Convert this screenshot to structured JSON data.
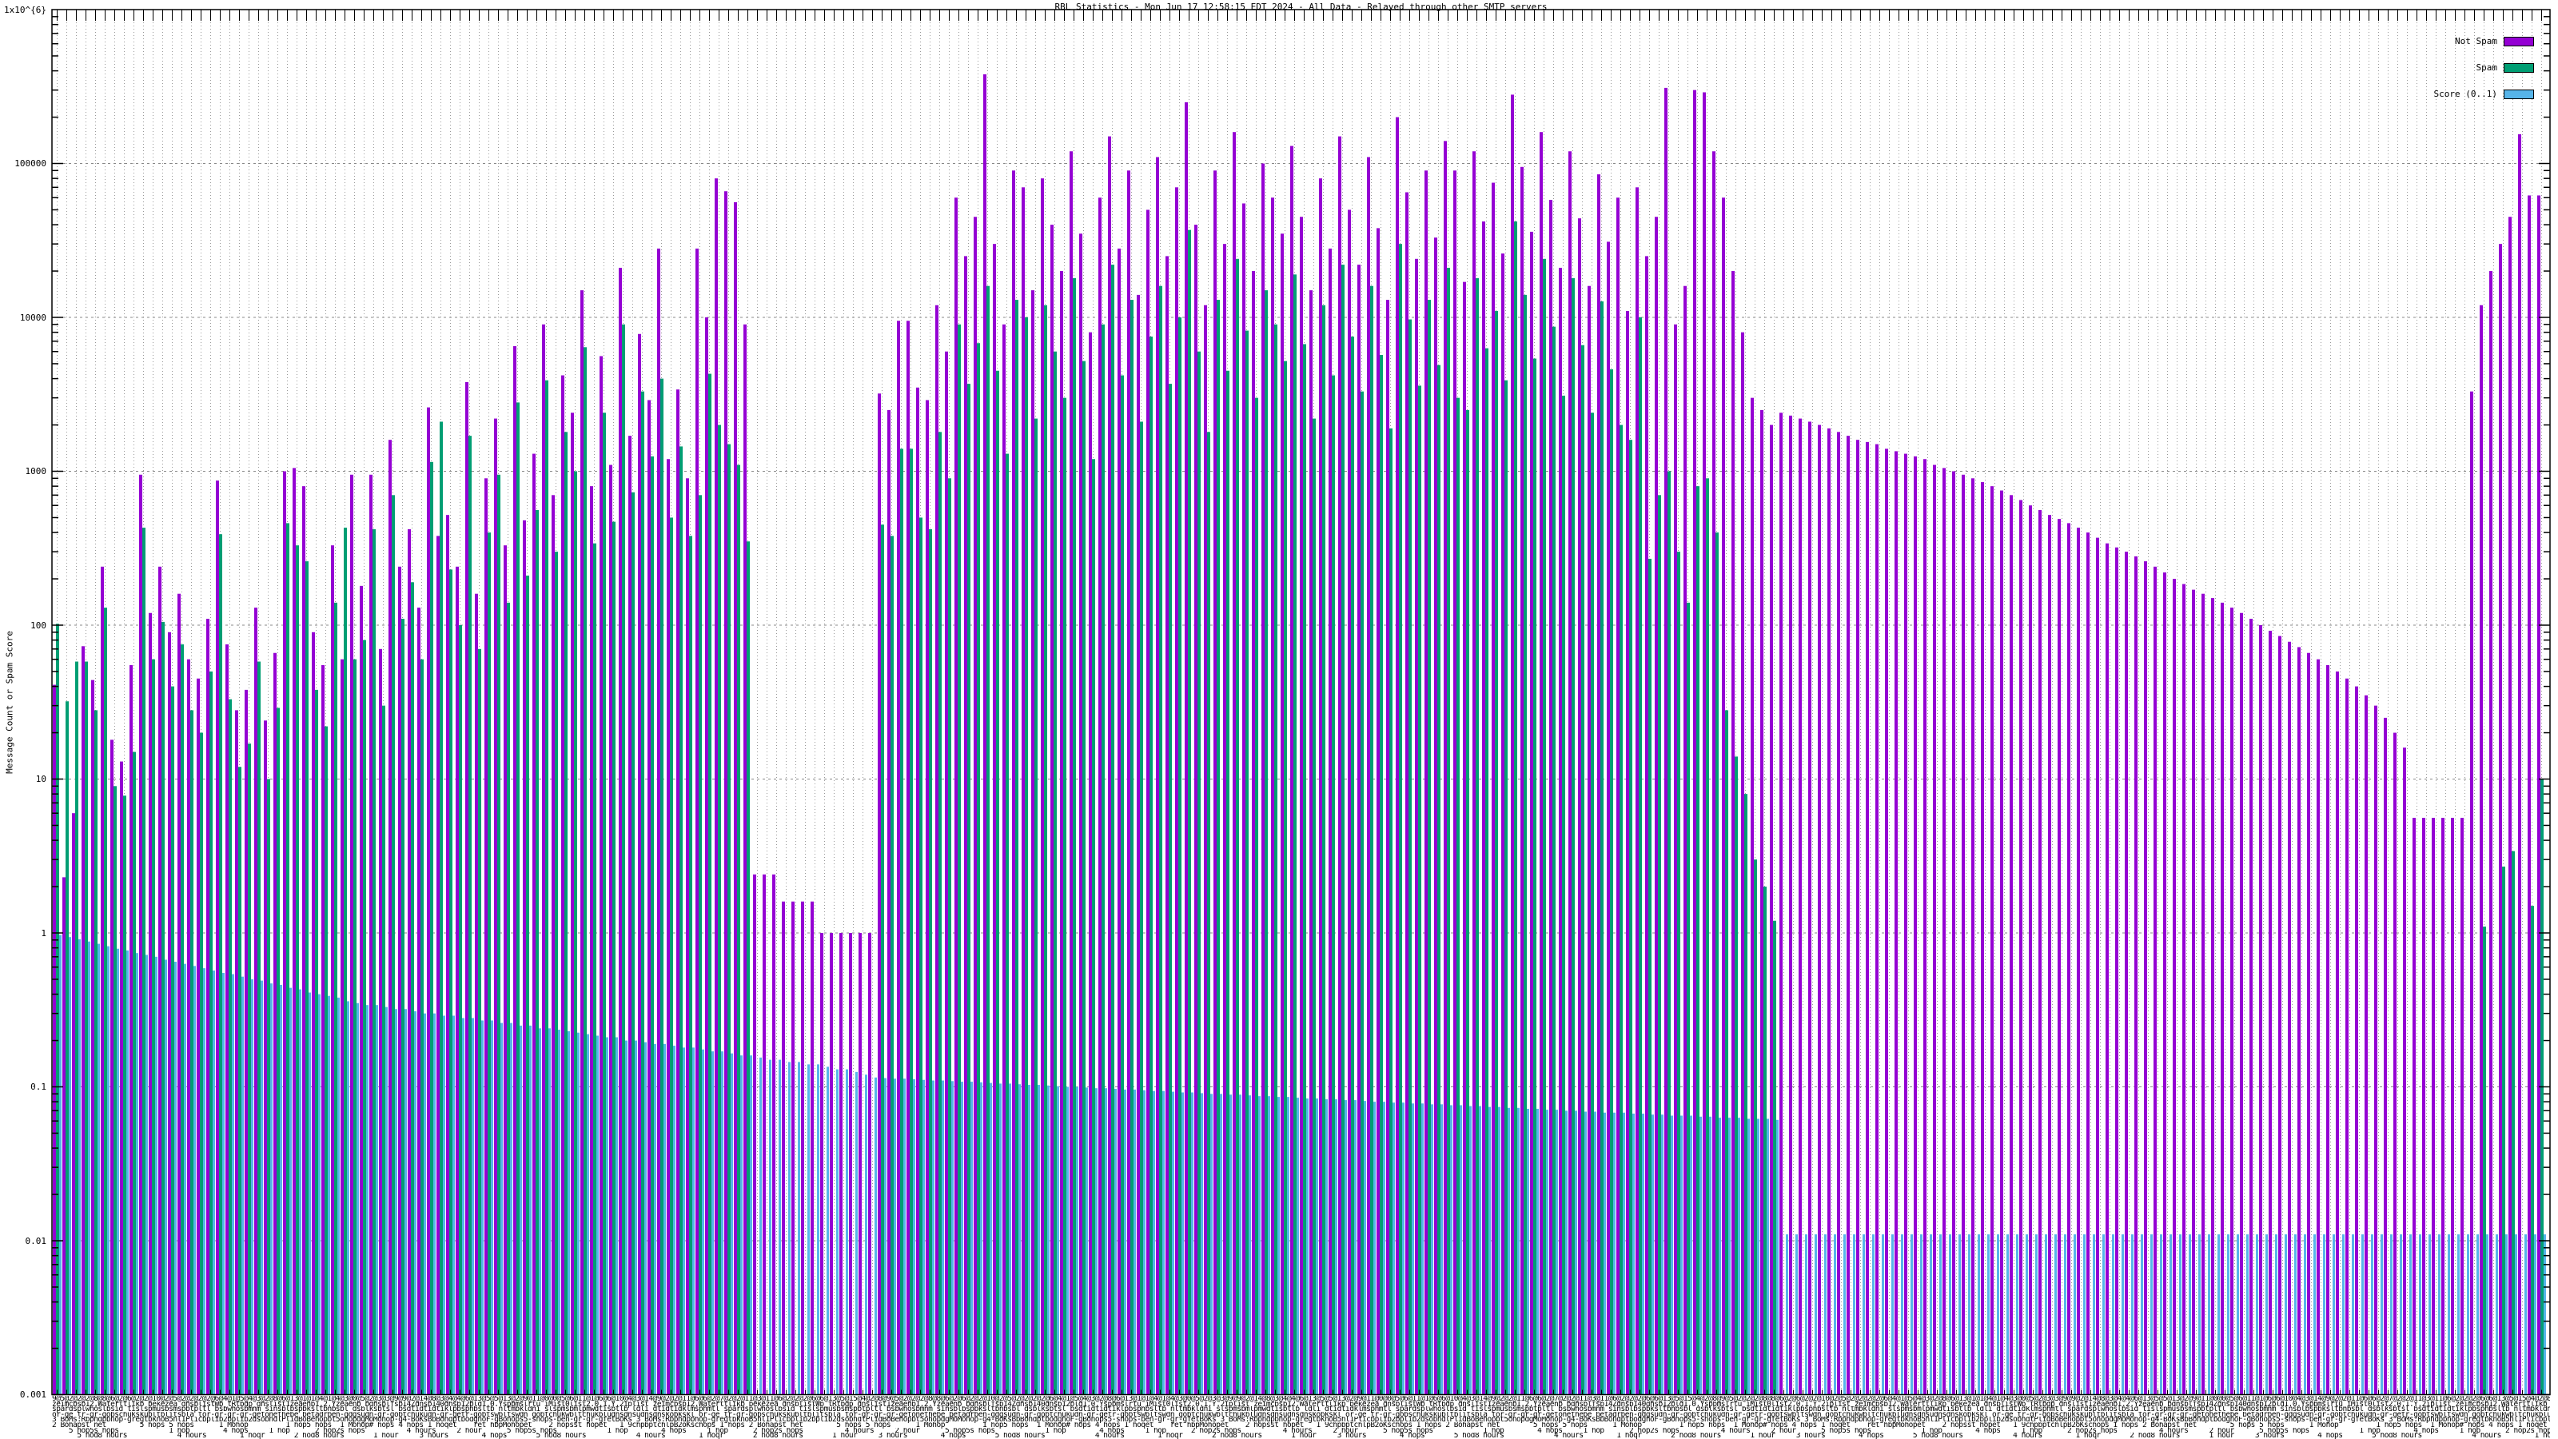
{
  "title": "RBL Statistics - Mon Jun 17 12:58:15 EDT 2024 - All Data - Relayed through other SMTP servers",
  "y_axis": {
    "title": "Message Count or Spam Score",
    "scale": "log",
    "ticks": [
      {
        "v": 1000000,
        "label": "1x10^{6}"
      },
      {
        "v": 100000,
        "label": "100000"
      },
      {
        "v": 10000,
        "label": "10000"
      },
      {
        "v": 1000,
        "label": "1000"
      },
      {
        "v": 100,
        "label": "100"
      },
      {
        "v": 10,
        "label": "10"
      },
      {
        "v": 1,
        "label": "1"
      },
      {
        "v": 0.1,
        "label": "0.1"
      },
      {
        "v": 0.01,
        "label": "0.01"
      },
      {
        "v": 0.001,
        "label": "0.001"
      }
    ]
  },
  "legend": {
    "items": [
      {
        "label": "Not Spam",
        "color": "#9400D3"
      },
      {
        "label": "Spam",
        "color": "#009E73"
      },
      {
        "label": "Score (0..1)",
        "color": "#56B4E9"
      }
    ]
  },
  "colors": {
    "not_spam": "#9400D3",
    "spam": "#009E73",
    "score": "#56B4E9",
    "grid": "#999999",
    "border": "#000000"
  },
  "x_axis": {
    "label_rows": [
      {
        "text": "9@5@2@2@2@8@8@6@2@6@2@2@10@2@5@2@2@2@2@6@4@1@5@4@3@2@8@6@13@1@1@4@1@4@3@0@5@2@3@3@9@9@2@14@8@3@4@4@6@13@5@5@13@2@9@11@0@0@5@6@11@1@6@6@10@4@3@14@9@2@2@11@6@6@2@7@2@2@11@3@11@6@2@2@2@6@6@13@5@15@4@2@8@"
      },
      {
        "text": "zeimcbsb12.Waterttlikb bekezea dnsblistWb tRtbdp dnslist1zeaenb1.2.Yzeaenb bdnsblfsb14Zdnsb140dhsb12bld1.0.Yspbmslrtu iMist0list2.0.1.Y.2iplist "
      },
      {
        "text": "spardsplwhoslbsid tislspmusbsmspbtpltl bsbwhosbmnm sinsblbspbksltbnbsbl dsblksbtsl bsdtidtidtiklpbsphbsltb nltmbkldni slspmsbmlpmwdtisbtlb ldli dtidtidklmsphmtl "
      },
      {
        "text": "or-ge tr-gr-gobschukskubltblitsbla tor-gr-gr-gr-getonethebe betadrben-gdgsudn-gr-gobtchukudn-gr-getr-gobtswbltswdn gobtchukwbltchukbludnsdnsudnsdnskobkskl "
      },
      {
        "text": "3 BoMs:Rbphdpbhop-gregtbknoB5hl1Plicbplib2bplib2dsobhdlPlidBoBehopbt5ohopdgMoMohop-g4-BoKsBbBohdptbodghoF-gBohops5-shops-ben-gr-gr-gfetBoKs "
      },
      {
        "text": "2 Bohapst net        5 hops 5 hops      1 Mohop         1 hop5 hops  1 Mohop# hops 4 hops 1 hoqet    ret hbpMohopet    2 hopsst hopet   1 9chpbptchlpB2oKschops 1 hops "
      },
      {
        "text": "    5 hop5s hops            1 hop        4 hops     1 hop      2 hop2s hops          4 hours     2 hour  "
      },
      {
        "text": "      5 hod8 hours            4 hours        1 hoqr       2 hod8 hours       1 hour     3 hours        4 hops "
      }
    ]
  },
  "chart_data": {
    "type": "bar",
    "title": "RBL Statistics - Mon Jun 17 12:58:15 EDT 2024 - All Data - Relayed through other SMTP servers",
    "xlabel": "",
    "ylabel": "Message Count or Spam Score",
    "y_scale": "log",
    "ylim": [
      0.001,
      1000000
    ],
    "grid": true,
    "legend_position": "top-right",
    "series_names": [
      "Not Spam",
      "Spam",
      "Score (0..1)"
    ],
    "bars_note": "each entry = [not_spam_count, spam_count, score_0_to_1]; spam 0 = no green bar drawn",
    "bars": [
      [
        41,
        102,
        0.97
      ],
      [
        2.3,
        32,
        0.94
      ],
      [
        6,
        58,
        0.91
      ],
      [
        73,
        58,
        0.88
      ],
      [
        44,
        28,
        0.85
      ],
      [
        240,
        130,
        0.82
      ],
      [
        18,
        9,
        0.79
      ],
      [
        13,
        7.8,
        0.77
      ],
      [
        55,
        15,
        0.74
      ],
      [
        950,
        430,
        0.72
      ],
      [
        120,
        60,
        0.7
      ],
      [
        240,
        105,
        0.67
      ],
      [
        90,
        40,
        0.65
      ],
      [
        160,
        75,
        0.63
      ],
      [
        60,
        28,
        0.61
      ],
      [
        45,
        20,
        0.59
      ],
      [
        110,
        50,
        0.57
      ],
      [
        870,
        390,
        0.55
      ],
      [
        75,
        33,
        0.54
      ],
      [
        28,
        12,
        0.52
      ],
      [
        38,
        17,
        0.5
      ],
      [
        130,
        58,
        0.49
      ],
      [
        24,
        10,
        0.47
      ],
      [
        66,
        29,
        0.46
      ],
      [
        1000,
        460,
        0.44
      ],
      [
        1050,
        330,
        0.43
      ],
      [
        800,
        260,
        0.41
      ],
      [
        90,
        38,
        0.4
      ],
      [
        55,
        22,
        0.39
      ],
      [
        330,
        140,
        0.38
      ],
      [
        60,
        430,
        0.36
      ],
      [
        950,
        60,
        0.35
      ],
      [
        180,
        80,
        0.34
      ],
      [
        950,
        420,
        0.34
      ],
      [
        70,
        30,
        0.33
      ],
      [
        1600,
        700,
        0.32
      ],
      [
        240,
        110,
        0.32
      ],
      [
        420,
        190,
        0.31
      ],
      [
        130,
        60,
        0.3
      ],
      [
        2600,
        1150,
        0.3
      ],
      [
        380,
        2100,
        0.29
      ],
      [
        520,
        230,
        0.29
      ],
      [
        240,
        100,
        0.28
      ],
      [
        3800,
        1700,
        0.28
      ],
      [
        160,
        70,
        0.27
      ],
      [
        900,
        400,
        0.27
      ],
      [
        2200,
        950,
        0.26
      ],
      [
        330,
        140,
        0.26
      ],
      [
        6500,
        2800,
        0.25
      ],
      [
        480,
        210,
        0.25
      ],
      [
        1300,
        560,
        0.24
      ],
      [
        9000,
        3900,
        0.24
      ],
      [
        700,
        300,
        0.235
      ],
      [
        4200,
        1800,
        0.23
      ],
      [
        2400,
        1000,
        0.225
      ],
      [
        15000,
        6400,
        0.22
      ],
      [
        800,
        340,
        0.215
      ],
      [
        5600,
        2400,
        0.21
      ],
      [
        1100,
        470,
        0.21
      ],
      [
        21000,
        9000,
        0.2
      ],
      [
        1700,
        730,
        0.2
      ],
      [
        7800,
        3300,
        0.195
      ],
      [
        2900,
        1250,
        0.19
      ],
      [
        28000,
        4000,
        0.19
      ],
      [
        1200,
        500,
        0.185
      ],
      [
        3400,
        1450,
        0.18
      ],
      [
        900,
        380,
        0.18
      ],
      [
        28000,
        700,
        0.175
      ],
      [
        10000,
        4300,
        0.17
      ],
      [
        80000,
        2000,
        0.17
      ],
      [
        66000,
        1500,
        0.165
      ],
      [
        56000,
        1100,
        0.16
      ],
      [
        9000,
        350,
        0.16
      ],
      [
        2.4,
        0,
        0.155
      ],
      [
        2.4,
        0,
        0.15
      ],
      [
        2.4,
        0,
        0.15
      ],
      [
        1.6,
        0,
        0.145
      ],
      [
        1.6,
        0,
        0.145
      ],
      [
        1.6,
        0,
        0.14
      ],
      [
        1.6,
        0,
        0.14
      ],
      [
        1,
        0,
        0.135
      ],
      [
        1,
        0,
        0.13
      ],
      [
        1,
        0,
        0.13
      ],
      [
        1,
        0,
        0.125
      ],
      [
        1,
        0,
        0.12
      ],
      [
        1,
        0,
        0.115
      ],
      [
        3200,
        450,
        0.114
      ],
      [
        2500,
        380,
        0.113
      ],
      [
        9500,
        1400,
        0.113
      ],
      [
        9500,
        1400,
        0.112
      ],
      [
        3500,
        500,
        0.111
      ],
      [
        2900,
        420,
        0.11
      ],
      [
        12000,
        1800,
        0.11
      ],
      [
        6000,
        900,
        0.109
      ],
      [
        60000,
        9000,
        0.108
      ],
      [
        25000,
        3700,
        0.108
      ],
      [
        45000,
        6800,
        0.107
      ],
      [
        380000,
        16000,
        0.106
      ],
      [
        30000,
        4500,
        0.105
      ],
      [
        9000,
        1300,
        0.105
      ],
      [
        90000,
        13000,
        0.104
      ],
      [
        70000,
        10000,
        0.103
      ],
      [
        15000,
        2200,
        0.103
      ],
      [
        80000,
        12000,
        0.102
      ],
      [
        40000,
        6000,
        0.101
      ],
      [
        20000,
        3000,
        0.1
      ],
      [
        120000,
        18000,
        0.1
      ],
      [
        35000,
        5200,
        0.099
      ],
      [
        8000,
        1200,
        0.098
      ],
      [
        60000,
        9000,
        0.098
      ],
      [
        150000,
        22000,
        0.097
      ],
      [
        28000,
        4200,
        0.096
      ],
      [
        90000,
        13000,
        0.096
      ],
      [
        14000,
        2100,
        0.095
      ],
      [
        50000,
        7500,
        0.094
      ],
      [
        110000,
        16000,
        0.094
      ],
      [
        25000,
        3700,
        0.093
      ],
      [
        70000,
        10000,
        0.092
      ],
      [
        250000,
        37000,
        0.092
      ],
      [
        40000,
        6000,
        0.091
      ],
      [
        12000,
        1800,
        0.09
      ],
      [
        90000,
        13000,
        0.09
      ],
      [
        30000,
        4500,
        0.089
      ],
      [
        160000,
        24000,
        0.089
      ],
      [
        55000,
        8200,
        0.088
      ],
      [
        20000,
        3000,
        0.087
      ],
      [
        100000,
        15000,
        0.087
      ],
      [
        60000,
        9000,
        0.086
      ],
      [
        35000,
        5200,
        0.086
      ],
      [
        130000,
        19000,
        0.085
      ],
      [
        45000,
        6700,
        0.084
      ],
      [
        15000,
        2200,
        0.084
      ],
      [
        80000,
        12000,
        0.083
      ],
      [
        28000,
        4200,
        0.083
      ],
      [
        150000,
        22000,
        0.082
      ],
      [
        50000,
        7500,
        0.082
      ],
      [
        22000,
        3300,
        0.081
      ],
      [
        110000,
        16000,
        0.08
      ],
      [
        38000,
        5700,
        0.08
      ],
      [
        13000,
        1900,
        0.079
      ],
      [
        200000,
        30000,
        0.079
      ],
      [
        65000,
        9700,
        0.078
      ],
      [
        24000,
        3600,
        0.078
      ],
      [
        90000,
        13000,
        0.077
      ],
      [
        33000,
        4900,
        0.077
      ],
      [
        140000,
        21000,
        0.076
      ],
      [
        90000,
        3000,
        0.076
      ],
      [
        17000,
        2500,
        0.075
      ],
      [
        120000,
        18000,
        0.075
      ],
      [
        42000,
        6300,
        0.074
      ],
      [
        75000,
        11000,
        0.074
      ],
      [
        26000,
        3900,
        0.073
      ],
      [
        280000,
        42000,
        0.073
      ],
      [
        95000,
        14000,
        0.072
      ],
      [
        36000,
        5400,
        0.072
      ],
      [
        160000,
        24000,
        0.071
      ],
      [
        58000,
        8700,
        0.071
      ],
      [
        21000,
        3100,
        0.07
      ],
      [
        120000,
        18000,
        0.07
      ],
      [
        44000,
        6600,
        0.069
      ],
      [
        16000,
        2400,
        0.069
      ],
      [
        85000,
        12700,
        0.068
      ],
      [
        31000,
        4600,
        0.068
      ],
      [
        60000,
        2000,
        0.068
      ],
      [
        11000,
        1600,
        0.067
      ],
      [
        70000,
        10000,
        0.067
      ],
      [
        25000,
        270,
        0.066
      ],
      [
        45000,
        700,
        0.066
      ],
      [
        310000,
        1000,
        0.065
      ],
      [
        9000,
        300,
        0.065
      ],
      [
        16000,
        140,
        0.065
      ],
      [
        300000,
        800,
        0.064
      ],
      [
        290000,
        900,
        0.064
      ],
      [
        120000,
        400,
        0.063
      ],
      [
        60000,
        28,
        0.063
      ],
      [
        20000,
        14,
        0.063
      ],
      [
        8000,
        8,
        0.062
      ],
      [
        3000,
        3,
        0.062
      ],
      [
        2500,
        2,
        0.062
      ],
      [
        2000,
        1.2,
        0.061
      ],
      [
        2400,
        0,
        0.011
      ],
      [
        2300,
        0,
        0.011
      ],
      [
        2200,
        0,
        0.011
      ],
      [
        2100,
        0,
        0.011
      ],
      [
        2000,
        0,
        0.011
      ],
      [
        1900,
        0,
        0.011
      ],
      [
        1800,
        0,
        0.011
      ],
      [
        1700,
        0,
        0.011
      ],
      [
        1600,
        0,
        0.011
      ],
      [
        1550,
        0,
        0.011
      ],
      [
        1500,
        0,
        0.011
      ],
      [
        1400,
        0,
        0.011
      ],
      [
        1350,
        0,
        0.011
      ],
      [
        1300,
        0,
        0.011
      ],
      [
        1250,
        0,
        0.011
      ],
      [
        1200,
        0,
        0.011
      ],
      [
        1100,
        0,
        0.011
      ],
      [
        1050,
        0,
        0.011
      ],
      [
        1000,
        0,
        0.011
      ],
      [
        950,
        0,
        0.011
      ],
      [
        900,
        0,
        0.011
      ],
      [
        850,
        0,
        0.011
      ],
      [
        800,
        0,
        0.011
      ],
      [
        750,
        0,
        0.011
      ],
      [
        700,
        0,
        0.011
      ],
      [
        650,
        0,
        0.011
      ],
      [
        600,
        0,
        0.011
      ],
      [
        560,
        0,
        0.011
      ],
      [
        520,
        0,
        0.011
      ],
      [
        490,
        0,
        0.011
      ],
      [
        460,
        0,
        0.011
      ],
      [
        430,
        0,
        0.011
      ],
      [
        400,
        0,
        0.011
      ],
      [
        370,
        0,
        0.011
      ],
      [
        340,
        0,
        0.011
      ],
      [
        320,
        0,
        0.011
      ],
      [
        300,
        0,
        0.011
      ],
      [
        280,
        0,
        0.011
      ],
      [
        260,
        0,
        0.011
      ],
      [
        240,
        0,
        0.011
      ],
      [
        220,
        0,
        0.011
      ],
      [
        200,
        0,
        0.011
      ],
      [
        185,
        0,
        0.011
      ],
      [
        170,
        0,
        0.011
      ],
      [
        160,
        0,
        0.011
      ],
      [
        150,
        0,
        0.011
      ],
      [
        140,
        0,
        0.011
      ],
      [
        130,
        0,
        0.011
      ],
      [
        120,
        0,
        0.011
      ],
      [
        110,
        0,
        0.011
      ],
      [
        100,
        0,
        0.011
      ],
      [
        92,
        0,
        0.011
      ],
      [
        85,
        0,
        0.011
      ],
      [
        78,
        0,
        0.011
      ],
      [
        72,
        0,
        0.011
      ],
      [
        66,
        0,
        0.011
      ],
      [
        60,
        0,
        0.011
      ],
      [
        55,
        0,
        0.011
      ],
      [
        50,
        0,
        0.011
      ],
      [
        45,
        0,
        0.011
      ],
      [
        40,
        0,
        0.011
      ],
      [
        35,
        0,
        0.011
      ],
      [
        30,
        0,
        0.011
      ],
      [
        25,
        0,
        0.011
      ],
      [
        20,
        0,
        0.011
      ],
      [
        16,
        0,
        0.011
      ],
      [
        5.6,
        0,
        0.011
      ],
      [
        5.6,
        0,
        0.011
      ],
      [
        5.6,
        0,
        0.011
      ],
      [
        5.6,
        0,
        0.011
      ],
      [
        5.6,
        0,
        0.011
      ],
      [
        5.6,
        0,
        0.011
      ],
      [
        3300,
        0,
        0.011
      ],
      [
        12000,
        1.1,
        0.011
      ],
      [
        20000,
        0,
        0.011
      ],
      [
        30000,
        2.7,
        0.011
      ],
      [
        45000,
        3.4,
        0.011
      ],
      [
        155000,
        0,
        0.011
      ],
      [
        62000,
        1.5,
        0.011
      ],
      [
        62000,
        10,
        0.011
      ]
    ]
  }
}
